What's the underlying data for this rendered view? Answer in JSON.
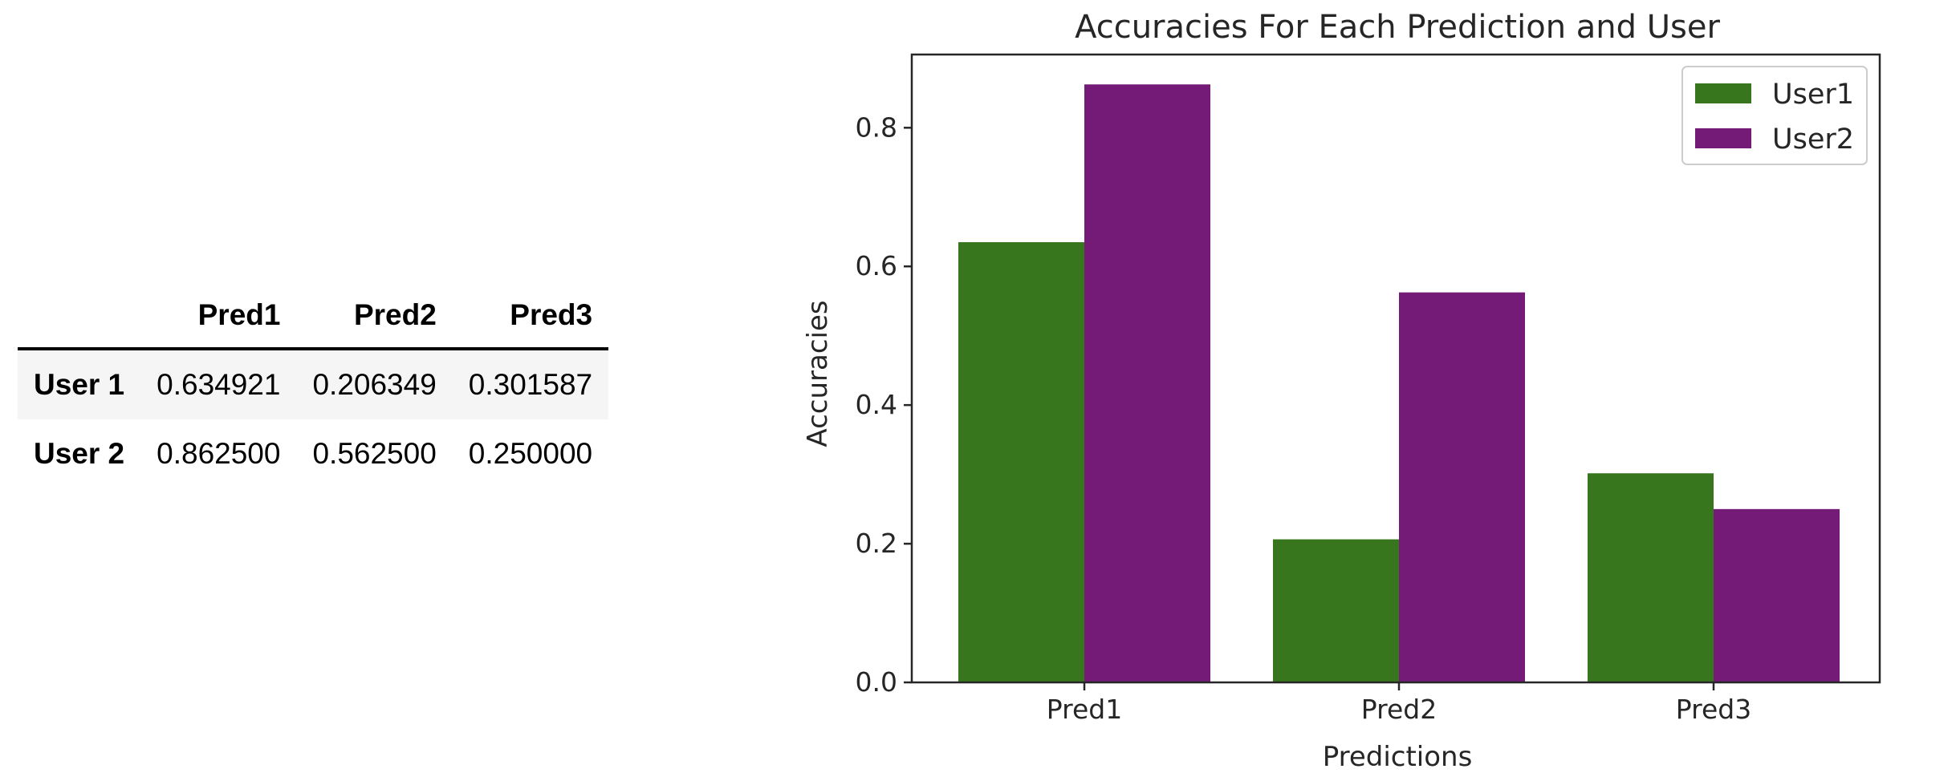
{
  "table": {
    "columns": [
      "Pred1",
      "Pred2",
      "Pred3"
    ],
    "rows": [
      {
        "label": "User 1",
        "values": [
          "0.634921",
          "0.206349",
          "0.301587"
        ]
      },
      {
        "label": "User 2",
        "values": [
          "0.862500",
          "0.562500",
          "0.250000"
        ]
      }
    ]
  },
  "chart_data": {
    "type": "bar",
    "title": "Accuracies For Each Prediction and User",
    "xlabel": "Predictions",
    "ylabel": "Accuracies",
    "categories": [
      "Pred1",
      "Pred2",
      "Pred3"
    ],
    "series": [
      {
        "name": "User1",
        "color": "#38761d",
        "values": [
          0.634921,
          0.206349,
          0.301587
        ]
      },
      {
        "name": "User2",
        "color": "#741b77",
        "values": [
          0.8625,
          0.5625,
          0.25
        ]
      }
    ],
    "ylim": [
      0,
      0.9056
    ],
    "yticks": [
      "0.0",
      "0.2",
      "0.4",
      "0.6",
      "0.8"
    ],
    "legend_position": "top-right",
    "grid": false
  }
}
